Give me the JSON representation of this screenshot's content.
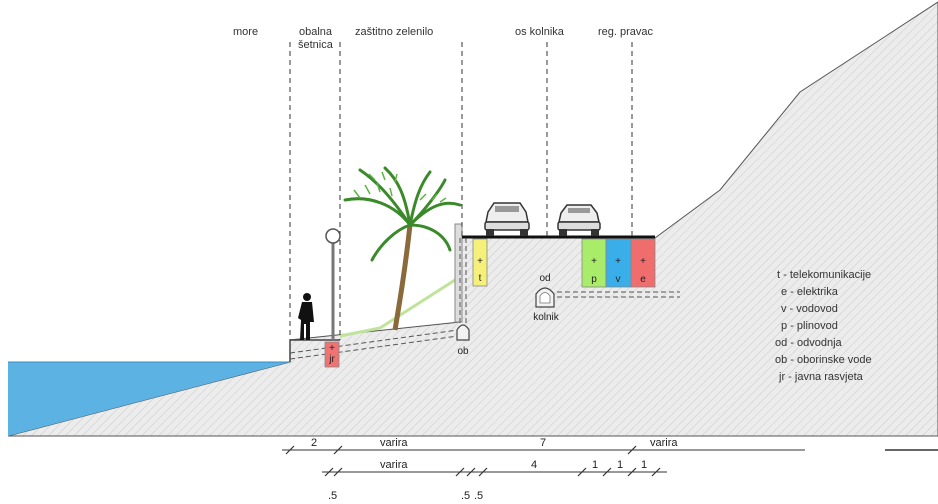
{
  "zones": {
    "more": "more",
    "obalna_1": "obalna",
    "obalna_2": "šetnica",
    "zastitno": "zaštitno zelenilo",
    "os_kolnika": "os kolnika",
    "reg_pravac": "reg. pravac"
  },
  "utilities": {
    "t": "t",
    "p": "p",
    "v": "v",
    "e": "e",
    "jr": "jr",
    "ob": "ob",
    "od": "od",
    "kolnik": "kolnik"
  },
  "legend": [
    "t - telekomunikacije",
    "e - elektrika",
    "v - vodovod",
    "p - plinovod",
    "od - odvodnja",
    "ob - oborinske vode",
    "jr - javna rasvjeta"
  ],
  "dimensions": {
    "row1": [
      "2",
      "varira",
      "7",
      "varira"
    ],
    "row2": [
      "varira",
      "4",
      "1",
      "1",
      "1"
    ],
    "row3": [
      ".5",
      ".5",
      ".5"
    ]
  },
  "colors": {
    "sea": "#5bb2e3",
    "t": "#f5f07a",
    "p": "#a8ec6a",
    "v": "#3aaee8",
    "e": "#f06d6d",
    "jr": "#ef7373",
    "slope_line": "#bfe39a"
  }
}
